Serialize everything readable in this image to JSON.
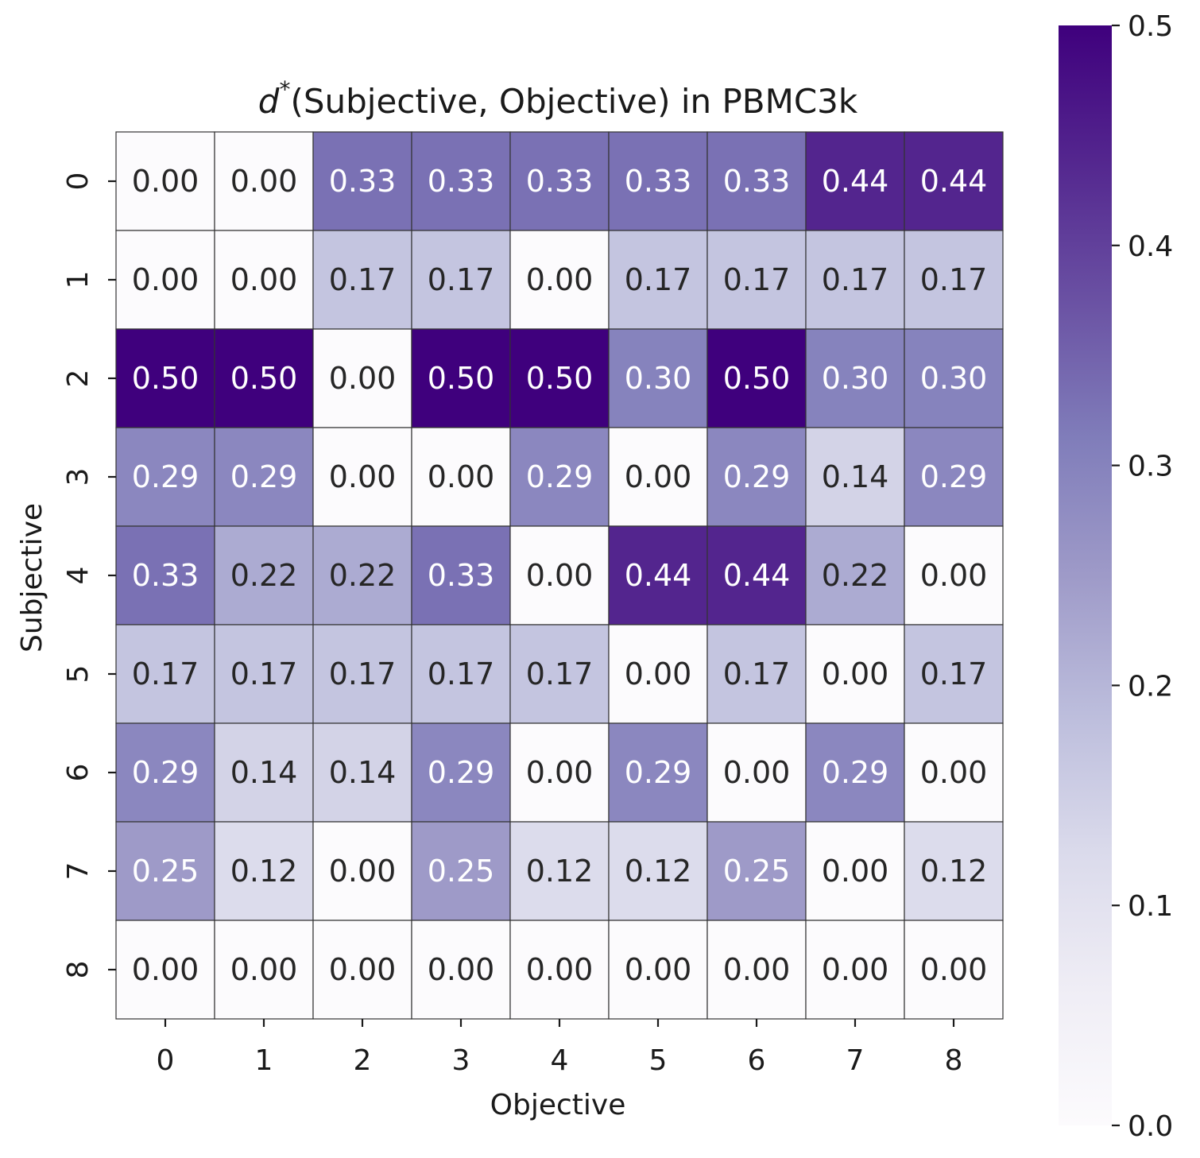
{
  "chart_data": {
    "type": "heatmap",
    "title_math": "d",
    "title_sup": "*",
    "title_rest": "(Subjective, Objective) in PBMC3k",
    "xlabel": "Objective",
    "ylabel": "Subjective",
    "x_categories": [
      "0",
      "1",
      "2",
      "3",
      "4",
      "5",
      "6",
      "7",
      "8"
    ],
    "y_categories": [
      "0",
      "1",
      "2",
      "3",
      "4",
      "5",
      "6",
      "7",
      "8"
    ],
    "values": [
      [
        0.0,
        0.0,
        0.33,
        0.33,
        0.33,
        0.33,
        0.33,
        0.44,
        0.44
      ],
      [
        0.0,
        0.0,
        0.17,
        0.17,
        0.0,
        0.17,
        0.17,
        0.17,
        0.17
      ],
      [
        0.5,
        0.5,
        0.0,
        0.5,
        0.5,
        0.3,
        0.5,
        0.3,
        0.3
      ],
      [
        0.29,
        0.29,
        0.0,
        0.0,
        0.29,
        0.0,
        0.29,
        0.14,
        0.29
      ],
      [
        0.33,
        0.22,
        0.22,
        0.33,
        0.0,
        0.44,
        0.44,
        0.22,
        0.0
      ],
      [
        0.17,
        0.17,
        0.17,
        0.17,
        0.17,
        0.0,
        0.17,
        0.0,
        0.17
      ],
      [
        0.29,
        0.14,
        0.14,
        0.29,
        0.0,
        0.29,
        0.0,
        0.29,
        0.0
      ],
      [
        0.25,
        0.12,
        0.0,
        0.25,
        0.12,
        0.12,
        0.25,
        0.0,
        0.12
      ],
      [
        0.0,
        0.0,
        0.0,
        0.0,
        0.0,
        0.0,
        0.0,
        0.0,
        0.0
      ]
    ],
    "value_range": [
      0.0,
      0.5
    ],
    "colormap": "Purples",
    "colorbar_ticks": [
      "0.0",
      "0.1",
      "0.2",
      "0.3",
      "0.4",
      "0.5"
    ],
    "colorbar_tick_values": [
      0.0,
      0.1,
      0.2,
      0.3,
      0.4,
      0.5
    ],
    "colors": {
      "low": "#fcfbfd",
      "high": "#3f007d",
      "grid": "#333333",
      "text_dark": "#262626",
      "text_light": "#ffffff"
    }
  }
}
